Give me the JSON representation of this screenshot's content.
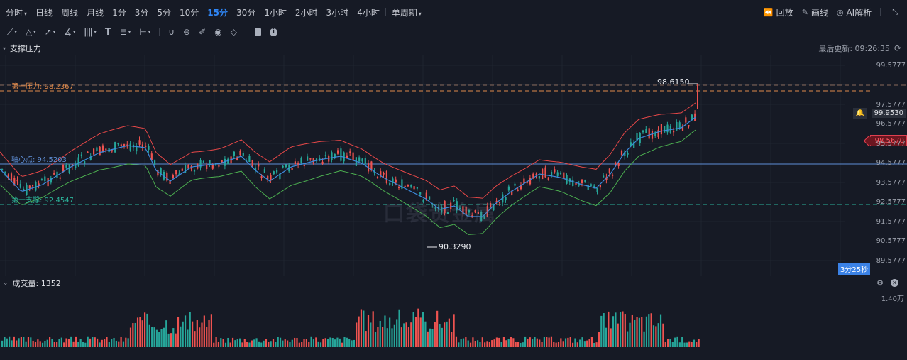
{
  "toolbar": {
    "periods": [
      {
        "label": "分时",
        "caret": "▾"
      },
      {
        "label": "日线"
      },
      {
        "label": "周线"
      },
      {
        "label": "月线"
      },
      {
        "label": "1分"
      },
      {
        "label": "3分"
      },
      {
        "label": "5分"
      },
      {
        "label": "10分"
      },
      {
        "label": "15分",
        "active": true
      },
      {
        "label": "30分"
      },
      {
        "label": "1小时"
      },
      {
        "label": "2小时"
      },
      {
        "label": "3小时"
      },
      {
        "label": "4小时"
      }
    ],
    "single_period": "单周期",
    "single_period_caret": "▾",
    "replay": "回放",
    "replay_icon": "⏪",
    "draw": "画线",
    "draw_icon": "✎",
    "ai": "AI解析",
    "ai_icon": "◎",
    "collapse_icon": "⤡"
  },
  "drawing_tools": [
    {
      "name": "line-tool",
      "glyph": "⟋",
      "caret": true
    },
    {
      "name": "triangle-tool",
      "glyph": "△",
      "caret": true
    },
    {
      "name": "arrow-tool",
      "glyph": "↗",
      "caret": true
    },
    {
      "name": "angle-tool",
      "glyph": "∡",
      "caret": true
    },
    {
      "name": "bars-tool",
      "glyph": "ǁǁ",
      "caret": true
    },
    {
      "name": "text-tool",
      "glyph": "T",
      "caret": false
    },
    {
      "name": "fib-tool",
      "glyph": "≣",
      "caret": true
    },
    {
      "name": "measure-tool",
      "glyph": "⊢",
      "caret": true
    },
    {
      "name": "magnet-tool",
      "glyph": "∪",
      "caret": false
    },
    {
      "name": "sync-tool",
      "glyph": "⊖",
      "caret": false
    },
    {
      "name": "edit-tool",
      "glyph": "✐",
      "caret": false
    },
    {
      "name": "visibility-tool",
      "glyph": "◉",
      "caret": false
    },
    {
      "name": "eraser-tool",
      "glyph": "◇",
      "caret": false
    },
    {
      "name": "trash-tool",
      "glyph": "🗑",
      "caret": false
    },
    {
      "name": "info-tool",
      "glyph": "ℹ",
      "caret": false
    }
  ],
  "panel": {
    "title": "支撑压力",
    "last_update_label": "最后更新: 09:26:35",
    "refresh_icon": "⟳"
  },
  "price_axis": {
    "top_price": "99.9530",
    "labels": [
      "99.5777",
      "97.5777",
      "96.5777",
      "95.5777",
      "94.5777",
      "93.5777",
      "92.5777",
      "91.5777",
      "90.5777",
      "89.5777"
    ],
    "current_price": "98.5670",
    "countdown": "3分25秒"
  },
  "levels": {
    "resistance1": "第一压力: 98.2367",
    "pivot": "轴心点: 94.5203",
    "support1": "第一支撑: 92.4547"
  },
  "annotations": {
    "high": "98.6150",
    "low": "90.3290"
  },
  "watermark": "口袋贵金属",
  "volume": {
    "title": "成交量: 1352",
    "axis_max": "1.40万",
    "settings_icon": "⚙",
    "close_icon": "✕"
  },
  "colors": {
    "up": "#ef5350",
    "down": "#26a69a",
    "accent": "#2f86f6",
    "resistance": "#e0894a",
    "support": "#2bb39a",
    "pivot": "#5f8fd6"
  }
}
